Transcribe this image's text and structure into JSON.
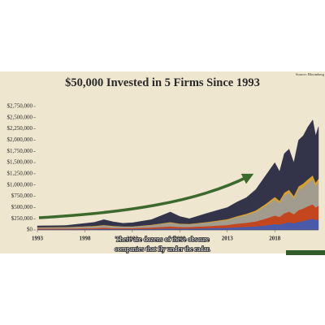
{
  "chart_data": {
    "type": "stacked_area",
    "title": "$50,000 Invested in 5 Firms Since 1993",
    "source": "Source: Bloomberg",
    "annotations": [
      "There are dozens of these obscure",
      "companies that fly under the radar."
    ],
    "x": [
      1993,
      1996,
      1999,
      2000,
      2001,
      2002,
      2003,
      2005,
      2007,
      2008,
      2009,
      2011,
      2013,
      2014,
      2015,
      2016,
      2017,
      2018,
      2018.5,
      2019,
      2019.5,
      2020,
      2020.5,
      2021,
      2021.5,
      2022,
      2022.3,
      2022.6
    ],
    "series": [
      {
        "color": "#4a5aa8",
        "values": [
          15000,
          15000,
          20000,
          25000,
          20000,
          20000,
          20000,
          25000,
          35000,
          30000,
          30000,
          40000,
          50000,
          60000,
          70000,
          80000,
          100000,
          130000,
          120000,
          150000,
          170000,
          150000,
          180000,
          200000,
          230000,
          250000,
          220000,
          240000
        ]
      },
      {
        "color": "#c4461f",
        "values": [
          15000,
          15000,
          20000,
          25000,
          20000,
          20000,
          20000,
          30000,
          45000,
          35000,
          35000,
          45000,
          60000,
          80000,
          90000,
          110000,
          150000,
          190000,
          170000,
          220000,
          240000,
          200000,
          260000,
          280000,
          300000,
          320000,
          280000,
          300000
        ]
      },
      {
        "color": "#a29c8f",
        "values": [
          25000,
          30000,
          40000,
          50000,
          40000,
          35000,
          35000,
          50000,
          80000,
          65000,
          60000,
          80000,
          110000,
          140000,
          170000,
          210000,
          280000,
          360000,
          310000,
          400000,
          420000,
          350000,
          460000,
          480000,
          520000,
          560000,
          480000,
          520000
        ]
      },
      {
        "color": "#d9a12b",
        "values": [
          5000,
          5000,
          10000,
          10000,
          10000,
          5000,
          5000,
          10000,
          15000,
          10000,
          10000,
          15000,
          20000,
          25000,
          30000,
          35000,
          45000,
          55000,
          50000,
          60000,
          65000,
          55000,
          70000,
          75000,
          80000,
          85000,
          75000,
          80000
        ]
      },
      {
        "color": "#33344a",
        "values": [
          30000,
          35000,
          80000,
          120000,
          90000,
          70000,
          80000,
          115000,
          225000,
          160000,
          115000,
          200000,
          260000,
          315000,
          360000,
          465000,
          625000,
          765000,
          650000,
          870000,
          905000,
          745000,
          1030000,
          1065000,
          1170000,
          1235000,
          1045000,
          1160000
        ]
      }
    ],
    "xlim": [
      1993,
      2022.6
    ],
    "xticks": [
      1993,
      1998,
      2003,
      2008,
      2013,
      2018
    ],
    "ylim": [
      0,
      2750000
    ],
    "yticks": [
      {
        "value": 0,
        "label": "$0"
      },
      {
        "value": 250000,
        "label": "$250,000"
      },
      {
        "value": 500000,
        "label": "$500,000"
      },
      {
        "value": 750000,
        "label": "$750,000"
      },
      {
        "value": 1000000,
        "label": "$1,000,000"
      },
      {
        "value": 1250000,
        "label": "$1,250,000"
      },
      {
        "value": 1500000,
        "label": "$1,500,000"
      },
      {
        "value": 1750000,
        "label": "$1,750,000"
      },
      {
        "value": 2000000,
        "label": "$2,000,000"
      },
      {
        "value": 2250000,
        "label": "$2,250,000"
      },
      {
        "value": 2500000,
        "label": "$2,500,000"
      },
      {
        "value": 2750000,
        "label": "$2,750,000"
      }
    ]
  }
}
